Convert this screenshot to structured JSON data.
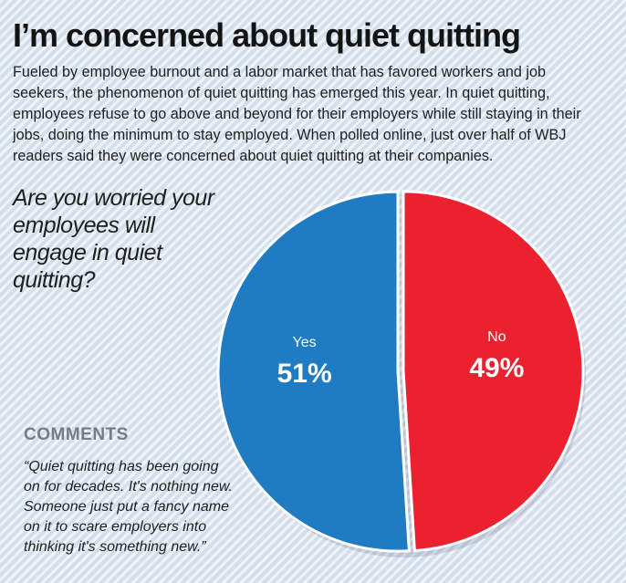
{
  "header": {
    "title": "I’m concerned about quiet quitting",
    "intro": "Fueled by employee burnout and a labor market that has favored workers and job seekers, the phenomenon of quiet quitting has emerged this year. In quiet quitting, employees refuse to go above and beyond for their employers while still staying in their jobs, doing the minimum to stay employed. When polled online, just over half of WBJ readers said they were concerned about quiet quitting at their companies."
  },
  "chart_data": {
    "type": "pie",
    "title": "Are you worried your employees will engage in quiet quitting?",
    "slices": [
      {
        "label": "Yes",
        "value": 51,
        "value_label": "51%",
        "color": "#1f7bc2"
      },
      {
        "label": "No",
        "value": 49,
        "value_label": "49%",
        "color": "#ec2130"
      }
    ]
  },
  "comments": {
    "title": "COMMENTS",
    "text": "“Quiet quitting has been going on for decades. It's nothing new. Someone just put a fancy name on it to scare employers into thinking it's something new.”"
  }
}
